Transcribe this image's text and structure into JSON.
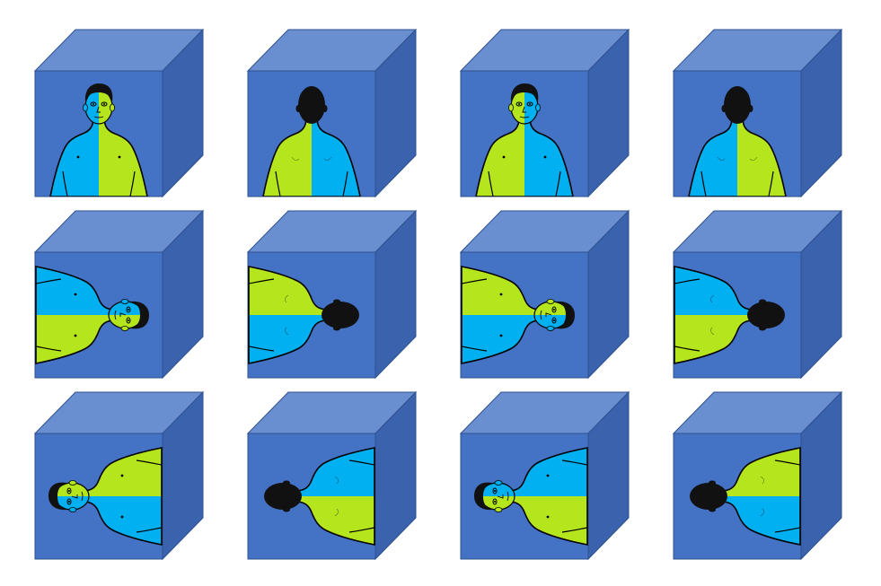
{
  "colors": {
    "cube_front": "#4472c4",
    "cube_top": "#6a8fd0",
    "cube_side": "#3a62ad",
    "cube_edge": "#2f528f",
    "skin_blue": "#00b0f0",
    "skin_green": "#b5e61d",
    "hair": "#111111",
    "outline": "#000000"
  },
  "cubes": [
    {
      "view": "front",
      "rotation": 0,
      "left_color": "skin_blue",
      "right_color": "skin_green"
    },
    {
      "view": "back",
      "rotation": 0,
      "left_color": "skin_green",
      "right_color": "skin_blue"
    },
    {
      "view": "front",
      "rotation": 0,
      "left_color": "skin_green",
      "right_color": "skin_blue"
    },
    {
      "view": "back",
      "rotation": 0,
      "left_color": "skin_blue",
      "right_color": "skin_green"
    },
    {
      "view": "front",
      "rotation": 90,
      "left_color": "skin_blue",
      "right_color": "skin_green"
    },
    {
      "view": "back",
      "rotation": 90,
      "left_color": "skin_green",
      "right_color": "skin_blue"
    },
    {
      "view": "front",
      "rotation": 90,
      "left_color": "skin_green",
      "right_color": "skin_blue"
    },
    {
      "view": "back",
      "rotation": 90,
      "left_color": "skin_blue",
      "right_color": "skin_green"
    },
    {
      "view": "front",
      "rotation": -90,
      "left_color": "skin_blue",
      "right_color": "skin_green"
    },
    {
      "view": "back",
      "rotation": -90,
      "left_color": "skin_green",
      "right_color": "skin_blue"
    },
    {
      "view": "front",
      "rotation": -90,
      "left_color": "skin_green",
      "right_color": "skin_blue"
    },
    {
      "view": "back",
      "rotation": -90,
      "left_color": "skin_blue",
      "right_color": "skin_green"
    }
  ]
}
